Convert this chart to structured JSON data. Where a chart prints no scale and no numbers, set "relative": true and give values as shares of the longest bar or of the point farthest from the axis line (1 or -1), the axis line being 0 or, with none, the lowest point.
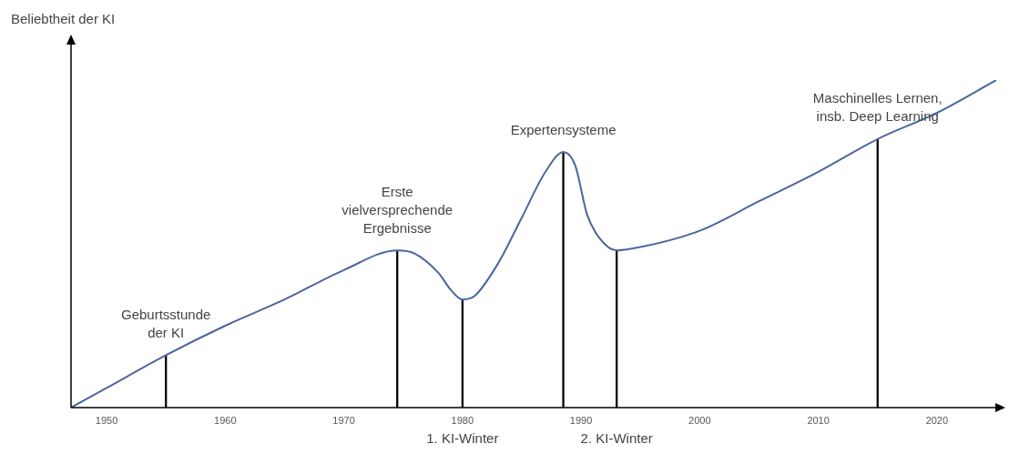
{
  "chart_data": {
    "type": "line",
    "ylabel": "Beliebtheit der KI",
    "relative": true,
    "grid": false,
    "legend": false,
    "marker": "none",
    "line_style": "solid",
    "tick_labels": "x",
    "xlim": [
      1947,
      2025
    ],
    "xticks": [
      1950,
      1960,
      1970,
      1980,
      1990,
      2000,
      2010,
      2020
    ],
    "series": [
      {
        "color": "#4a66a0",
        "x": [
          1947,
          1950,
          1955,
          1960,
          1965,
          1970,
          1974.5,
          1976,
          1978,
          1979,
          1980,
          1981,
          1983,
          1985,
          1987,
          1988.5,
          1989.5,
          1990.5,
          1991.5,
          1993,
          1995,
          2000,
          2005,
          2010,
          2015,
          2020,
          2025
        ],
        "values": [
          0,
          0.06,
          0.16,
          0.25,
          0.33,
          0.42,
          0.48,
          0.47,
          0.41,
          0.36,
          0.33,
          0.34,
          0.44,
          0.58,
          0.72,
          0.78,
          0.74,
          0.59,
          0.52,
          0.48,
          0.49,
          0.54,
          0.63,
          0.72,
          0.82,
          0.9,
          1
        ]
      },
      {
        "type": "bar",
        "color": "#000000",
        "x": [
          1955,
          1974.5,
          1980,
          1988.5,
          1993,
          2015
        ],
        "values": [
          0.16,
          0.48,
          0.33,
          0.78,
          0.48,
          0.82
        ]
      }
    ],
    "annotations": [
      {
        "text": "Geburtsstunde\nder KI",
        "x": 1955,
        "y": 0.16
      },
      {
        "text": "Erste\nvielversprechende\nErgebnisse",
        "x": 1974.5,
        "y": 0.48
      },
      {
        "text": "1. KI-Winter",
        "x": 1980,
        "y": 0
      },
      {
        "text": "Expertensysteme",
        "x": 1988.5,
        "y": 0.78
      },
      {
        "text": "2. KI-Winter",
        "x": 1993,
        "y": 0
      },
      {
        "text": "Maschinelles Lernen,\ninsb. Deep Learning",
        "x": 2015,
        "y": 0.82
      }
    ]
  }
}
